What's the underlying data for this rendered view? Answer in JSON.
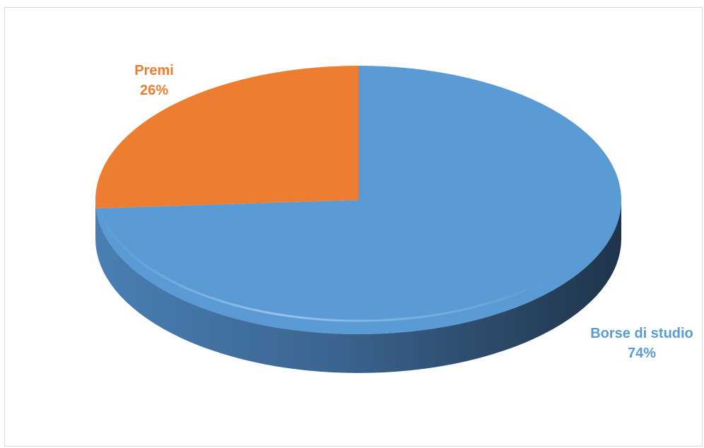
{
  "chart_data": {
    "type": "pie",
    "title": "",
    "style": "3d",
    "slices": [
      {
        "label": "Borse di studio",
        "value": 74,
        "percent_label": "74%",
        "color": "#5B9BD5"
      },
      {
        "label": "Premi",
        "value": 26,
        "percent_label": "26%",
        "color": "#ED7D31"
      }
    ],
    "legend": "none",
    "data_labels": "category and percent, outside"
  }
}
